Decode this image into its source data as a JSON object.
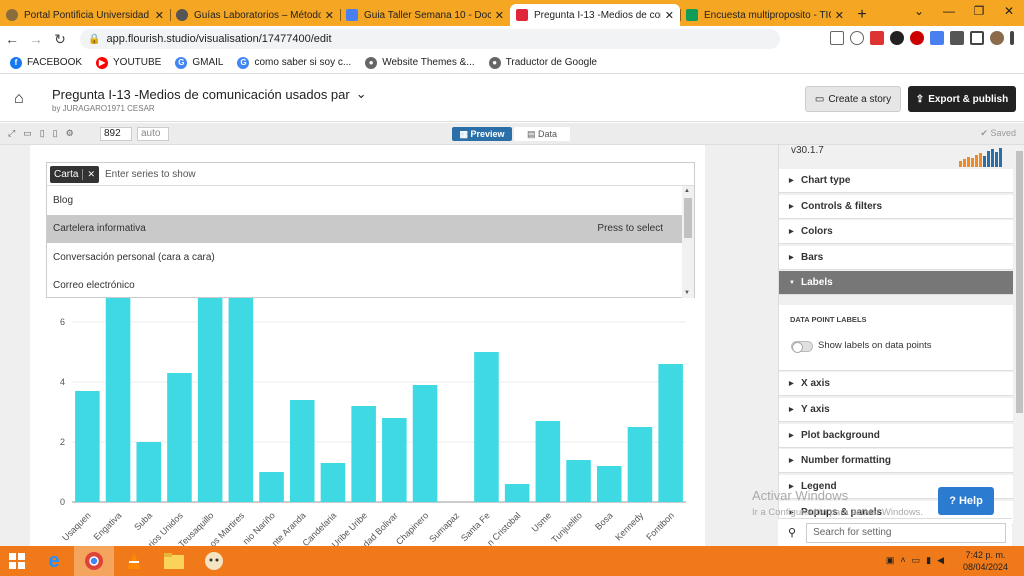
{
  "browser": {
    "tabs": [
      {
        "title": "Portal Pontificia Universidad Ja",
        "icon": "seal-icon",
        "active": false
      },
      {
        "title": "Guías Laboratorios – Métodos",
        "icon": "globe-icon",
        "active": false
      },
      {
        "title": "Guia Taller Semana 10 - Docu",
        "icon": "docs-icon",
        "active": false
      },
      {
        "title": "Pregunta I-13 -Medios de com",
        "icon": "flourish-icon",
        "active": true
      },
      {
        "title": "Encuesta multiproposito - TIC",
        "icon": "sheets-icon",
        "active": false
      }
    ],
    "url": "app.flourish.studio/visualisation/17477400/edit",
    "bookmarks": [
      {
        "label": "FACEBOOK",
        "icon": "facebook-icon",
        "color": "#1877f2",
        "glyph": "f"
      },
      {
        "label": "YOUTUBE",
        "icon": "youtube-icon",
        "color": "#ff0000",
        "glyph": "▶"
      },
      {
        "label": "GMAIL",
        "icon": "google-icon",
        "color": "#4285f4",
        "glyph": "G"
      },
      {
        "label": "como saber si soy c...",
        "icon": "google-icon",
        "color": "#4285f4",
        "glyph": "G"
      },
      {
        "label": "Website Themes &...",
        "icon": "globe-icon",
        "color": "#666666",
        "glyph": "●"
      },
      {
        "label": "Traductor de Google",
        "icon": "globe-icon",
        "color": "#666666",
        "glyph": "●"
      }
    ]
  },
  "header": {
    "title": "Pregunta I-13 -Medios de comunicación usados par",
    "by": "by JURAGARO1971 CESAR",
    "create_story": "Create a story",
    "export": "Export & publish"
  },
  "toolbar": {
    "width_value": "892",
    "height_value": "auto",
    "preview": "Preview",
    "data": "Data",
    "saved": "Saved"
  },
  "series_select": {
    "chip": "Carta",
    "placeholder": "Enter series to show",
    "options": [
      {
        "label": "Blog",
        "hint": ""
      },
      {
        "label": "Cartelera informativa",
        "hint": "Press to select"
      },
      {
        "label": "Conversación personal (cara a cara)",
        "hint": ""
      },
      {
        "label": "Correo electrónico",
        "hint": ""
      }
    ]
  },
  "chart_data": {
    "type": "bar",
    "color": "#3fd9e3",
    "categories": [
      "Usaquen",
      "Engativa",
      "Suba",
      "Barrios Unidos",
      "Teusaquillo",
      "Los Martires",
      "Antonio Nariño",
      "Puente Aranda",
      "Candelaria",
      "Rafael Uribe Uribe",
      "Ciudad Bolivar",
      "Chapinero",
      "Sumapaz",
      "Santa Fe",
      "San Cristobal",
      "Usme",
      "Tunjuelito",
      "Bosa",
      "Kennedy",
      "Fontibon"
    ],
    "tick_labels": [
      "Usaquen",
      "Engativa",
      "Suba",
      "rios Unidos",
      "Teusaquillo",
      "os Martires",
      "nio Nariño",
      "nte Aranda",
      "Candelaria",
      "Uribe Uribe",
      "dad Bolivar",
      "Chapinero",
      "Sumapaz",
      "Santa Fe",
      "n Cristobal",
      "Usme",
      "Tunjuelito",
      "Bosa",
      "Kennedy",
      "Fontibon"
    ],
    "values": [
      3.7,
      6.8,
      2.0,
      4.3,
      6.8,
      6.8,
      1.0,
      3.4,
      1.3,
      3.2,
      2.8,
      3.9,
      0,
      5.0,
      0.6,
      2.7,
      1.4,
      1.2,
      2.5,
      4.6
    ],
    "yticks": [
      0,
      2,
      4,
      6
    ],
    "ylim": [
      0,
      6.8
    ]
  },
  "sidebar": {
    "version": "v30.1.7",
    "sections": [
      {
        "label": "Chart type",
        "open": false
      },
      {
        "label": "Controls & filters",
        "open": false
      },
      {
        "label": "Colors",
        "open": false
      },
      {
        "label": "Bars",
        "open": false
      },
      {
        "label": "Labels",
        "open": true
      }
    ],
    "data_point_labels": {
      "heading": "DATA POINT LABELS",
      "toggle_label": "Show labels on data points"
    },
    "sections_after": [
      {
        "label": "X axis"
      },
      {
        "label": "Y axis"
      },
      {
        "label": "Plot background"
      },
      {
        "label": "Number formatting"
      },
      {
        "label": "Legend"
      },
      {
        "label": "Popups & panels"
      }
    ],
    "search_placeholder": "Search for setting"
  },
  "help": "? Help",
  "watermark": {
    "line1": "Activar Windows",
    "line2": "Ir a Configuración para activar Windows."
  },
  "clock": {
    "time": "7:42 p. m.",
    "date": "08/04/2024"
  }
}
